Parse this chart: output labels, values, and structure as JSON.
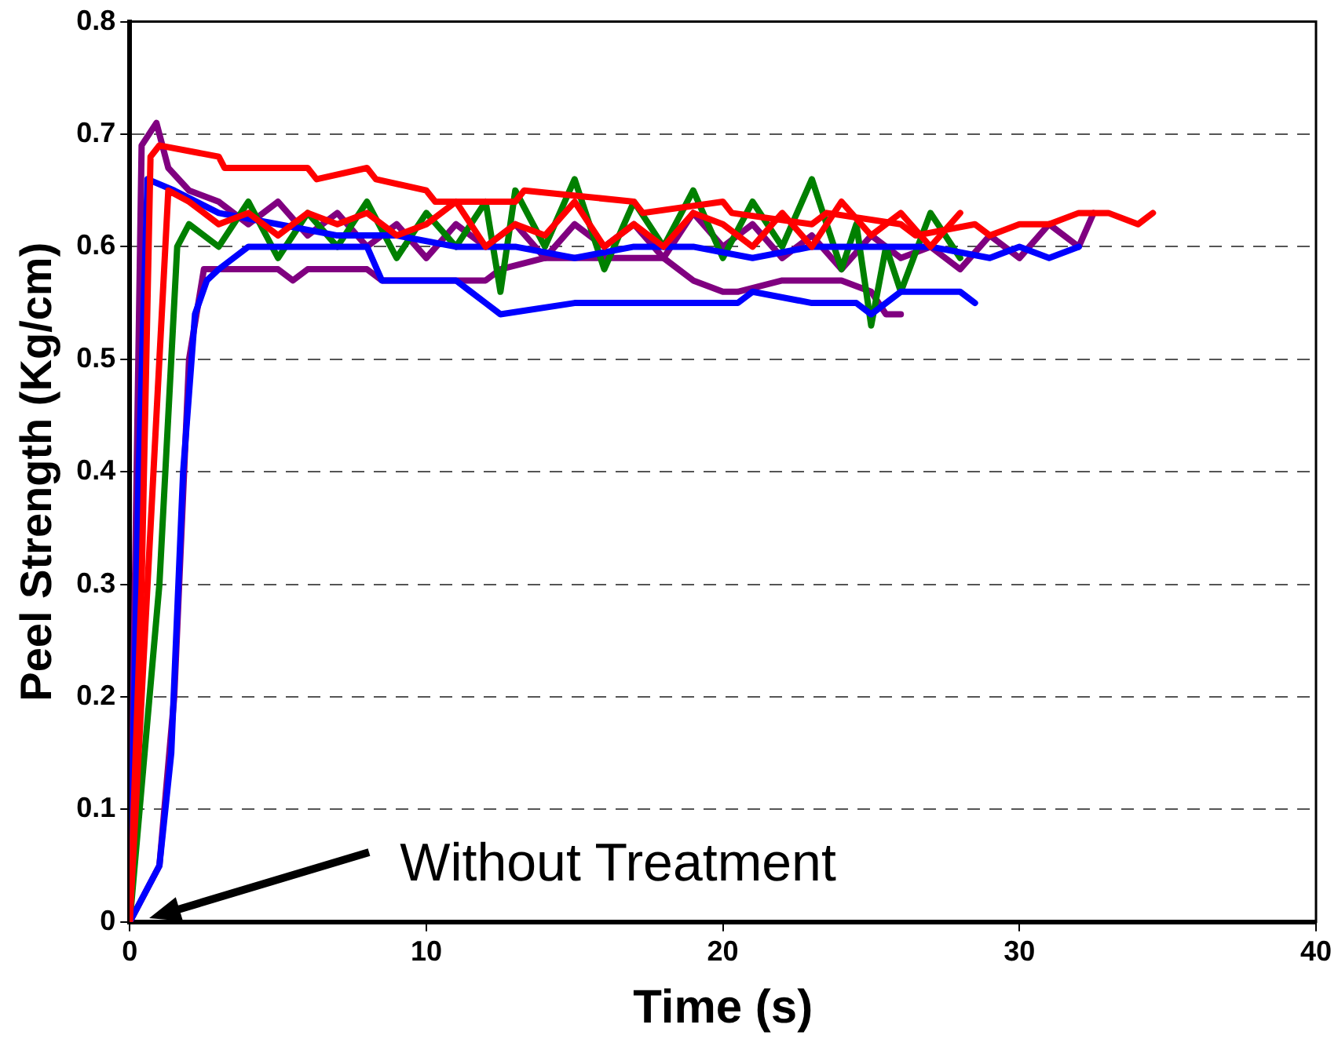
{
  "chart_data": {
    "type": "line",
    "xlabel": "Time (s)",
    "ylabel": "Peel Strength (Kg/cm)",
    "xlim": [
      0,
      40
    ],
    "xticks": [
      0,
      10,
      20,
      30,
      40
    ],
    "ylim": [
      0,
      0.8
    ],
    "yticks": [
      0,
      0.1,
      0.2,
      0.3,
      0.4,
      0.5,
      0.6,
      0.7,
      0.8
    ],
    "grid": "y",
    "legend": false,
    "marker": "none",
    "line_style": "solid",
    "annotations": [
      "Without Treatment"
    ],
    "series": [
      {
        "color": "#ff0000",
        "x": [
          0,
          0.4,
          0.7,
          1,
          3,
          3.2,
          6,
          6.3,
          8,
          8.3,
          10,
          10.3,
          13,
          13.3,
          17,
          17.3,
          20,
          20.3,
          23,
          23.5,
          26,
          26.5,
          28.5,
          29,
          30,
          31,
          32,
          33,
          34,
          34.5
        ],
        "values": [
          0,
          0.3,
          0.68,
          0.69,
          0.68,
          0.67,
          0.67,
          0.66,
          0.67,
          0.66,
          0.65,
          0.64,
          0.64,
          0.65,
          0.64,
          0.63,
          0.64,
          0.63,
          0.62,
          0.63,
          0.62,
          0.61,
          0.62,
          0.61,
          0.62,
          0.62,
          0.63,
          0.63,
          0.62,
          0.63
        ]
      },
      {
        "color": "#ff0000",
        "x": [
          0,
          0.8,
          1.3,
          2,
          3,
          4,
          5,
          6,
          7,
          8,
          9,
          10,
          11,
          12,
          13,
          14,
          15,
          16,
          17,
          18,
          19,
          20,
          21,
          22,
          23,
          24,
          25,
          26,
          27,
          28
        ],
        "values": [
          0,
          0.4,
          0.65,
          0.64,
          0.62,
          0.63,
          0.61,
          0.63,
          0.62,
          0.63,
          0.61,
          0.62,
          0.64,
          0.6,
          0.62,
          0.61,
          0.64,
          0.6,
          0.62,
          0.6,
          0.63,
          0.62,
          0.6,
          0.63,
          0.6,
          0.64,
          0.61,
          0.63,
          0.6,
          0.63
        ]
      },
      {
        "color": "#0000ff",
        "x": [
          0,
          0.3,
          0.6,
          1.5,
          3,
          5,
          7,
          9,
          11,
          13,
          15,
          17,
          19,
          21,
          23,
          25,
          27,
          29,
          30,
          31,
          32
        ],
        "values": [
          0,
          0.4,
          0.66,
          0.65,
          0.63,
          0.62,
          0.61,
          0.61,
          0.6,
          0.6,
          0.59,
          0.6,
          0.6,
          0.59,
          0.6,
          0.6,
          0.6,
          0.59,
          0.6,
          0.59,
          0.6
        ]
      },
      {
        "color": "#0000ff",
        "x": [
          0,
          1,
          1.4,
          1.8,
          2.2,
          2.6,
          3,
          4,
          6,
          8,
          8.5,
          11,
          11.5,
          12,
          12.5,
          15,
          17,
          19,
          20.5,
          21,
          23,
          24.5,
          25,
          26,
          27,
          28,
          28.5
        ],
        "values": [
          0,
          0.05,
          0.15,
          0.4,
          0.54,
          0.57,
          0.58,
          0.6,
          0.6,
          0.6,
          0.57,
          0.57,
          0.56,
          0.55,
          0.54,
          0.55,
          0.55,
          0.55,
          0.55,
          0.56,
          0.55,
          0.55,
          0.54,
          0.56,
          0.56,
          0.56,
          0.55
        ]
      },
      {
        "color": "#008000",
        "x": [
          0,
          1,
          1.6,
          2,
          3,
          4,
          5,
          6,
          7,
          8,
          9,
          10,
          11,
          12,
          12.5,
          13,
          14,
          15,
          16,
          17,
          18,
          19,
          20,
          21,
          22,
          23,
          24,
          24.5,
          25,
          25.5,
          26,
          27,
          28
        ],
        "values": [
          0,
          0.3,
          0.6,
          0.62,
          0.6,
          0.64,
          0.59,
          0.63,
          0.6,
          0.64,
          0.59,
          0.63,
          0.6,
          0.64,
          0.56,
          0.65,
          0.6,
          0.66,
          0.58,
          0.64,
          0.6,
          0.65,
          0.59,
          0.64,
          0.6,
          0.66,
          0.58,
          0.62,
          0.53,
          0.6,
          0.56,
          0.63,
          0.59
        ]
      },
      {
        "color": "#800080",
        "x": [
          0,
          0.4,
          0.9,
          1.3,
          2,
          3,
          4,
          5,
          6,
          7,
          8,
          9,
          10,
          11,
          12,
          13,
          14,
          15,
          16,
          17,
          18,
          19,
          20,
          21,
          22,
          23,
          24,
          25,
          26,
          27,
          28,
          29,
          30,
          31,
          32,
          32.5
        ],
        "values": [
          0,
          0.69,
          0.71,
          0.67,
          0.65,
          0.64,
          0.62,
          0.64,
          0.61,
          0.63,
          0.6,
          0.62,
          0.59,
          0.62,
          0.6,
          0.62,
          0.59,
          0.62,
          0.6,
          0.62,
          0.59,
          0.63,
          0.6,
          0.62,
          0.59,
          0.61,
          0.58,
          0.61,
          0.59,
          0.6,
          0.58,
          0.61,
          0.59,
          0.62,
          0.6,
          0.63
        ]
      },
      {
        "color": "#800080",
        "x": [
          0,
          1,
          1.5,
          2,
          2.5,
          3,
          5,
          5.5,
          6,
          8,
          8.5,
          12,
          12.5,
          14,
          15,
          18,
          19,
          20,
          20.5,
          22,
          23,
          24,
          25,
          25.5,
          26
        ],
        "values": [
          0,
          0.05,
          0.2,
          0.5,
          0.58,
          0.58,
          0.58,
          0.57,
          0.58,
          0.58,
          0.57,
          0.57,
          0.58,
          0.59,
          0.59,
          0.59,
          0.57,
          0.56,
          0.56,
          0.57,
          0.57,
          0.57,
          0.56,
          0.54,
          0.54
        ]
      }
    ]
  }
}
